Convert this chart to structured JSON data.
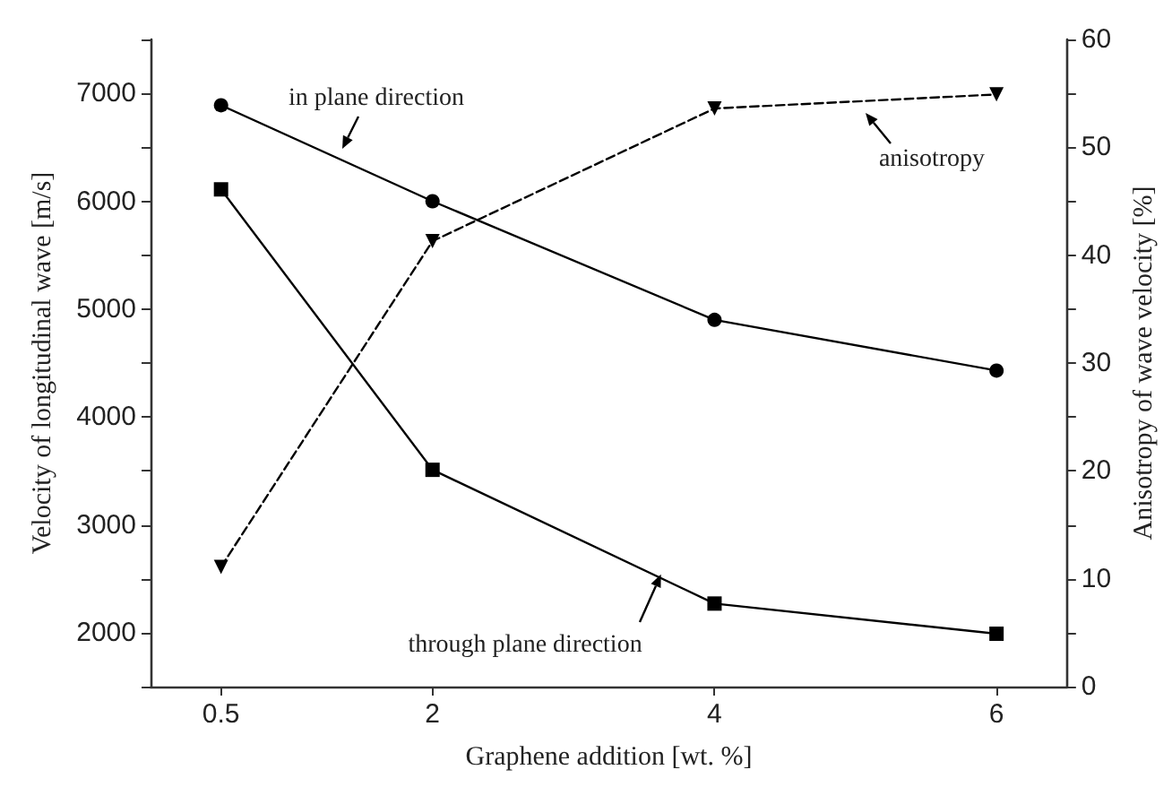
{
  "chart_data": {
    "type": "line",
    "xlabel": "Graphene addition [wt. %]",
    "ylabel": "Velocity of longitudinal wave [m/s]",
    "y2label": "Anisotropy of wave velocity [%]",
    "x": [
      0.5,
      2,
      4,
      6
    ],
    "xlim": [
      0,
      6.5
    ],
    "xticks": [
      0.5,
      2,
      4,
      6
    ],
    "ylim": [
      1500,
      7500
    ],
    "yticks": [
      {
        "value": 1500,
        "label": null
      },
      2000,
      {
        "value": 2500,
        "label": null
      },
      3000,
      {
        "value": 3500,
        "label": null
      },
      4000,
      {
        "value": 4500,
        "label": null
      },
      5000,
      {
        "value": 5500,
        "label": null
      },
      6000,
      {
        "value": 6500,
        "label": null
      },
      7000,
      {
        "value": 7500,
        "label": null
      }
    ],
    "y2lim": [
      0,
      60
    ],
    "y2ticks": [
      0,
      {
        "value": 5,
        "label": null
      },
      10,
      {
        "value": 15,
        "label": null
      },
      20,
      {
        "value": 25,
        "label": null
      },
      30,
      {
        "value": 35,
        "label": null
      },
      40,
      {
        "value": 45,
        "label": null
      },
      50,
      {
        "value": 55,
        "label": null
      },
      60
    ],
    "series": [
      {
        "color": "#000000",
        "marker": "circle",
        "line_style": "solid",
        "values": [
          6890,
          6000,
          4900,
          4430
        ]
      },
      {
        "color": "#000000",
        "marker": "square",
        "line_style": "solid",
        "values": [
          6110,
          3510,
          2270,
          1990
        ]
      },
      {
        "color": "#000000",
        "marker": "triangle",
        "line_style": "dashed",
        "axis": "y2",
        "values": [
          11.1,
          41.3,
          53.6,
          54.9
        ]
      }
    ],
    "annotations": [
      "in plane direction",
      {
        "text": "through plane direction",
        "x": 3.62,
        "y": 2540
      },
      "anisotropy"
    ],
    "grid": false
  }
}
